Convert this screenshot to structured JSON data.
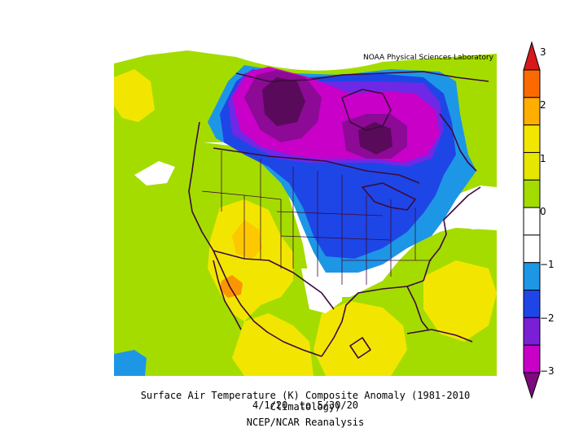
{
  "credit": "NOAA Physical Sciences Laboratory",
  "caption": {
    "line1": "Surface Air Temperature (K) Composite Anomaly (1981-2010 Climatology)",
    "line2": "4/1/20  to 5/30/20",
    "line3": "NCEP/NCAR Reanalysis"
  },
  "colorbar": {
    "ticks": [
      "3",
      "2",
      "1",
      "0",
      "−1",
      "−2",
      "−3"
    ],
    "colors": [
      "#d7191c",
      "#fb6a00",
      "#fdae00",
      "#f2e600",
      "#e6e600",
      "#a4dc00",
      "#ffffff",
      "#ffffff",
      "#1e96e6",
      "#1e46e6",
      "#7a1fd6",
      "#c800c8",
      "#7d0a7d"
    ]
  },
  "palette": {
    "neg3": "#5a0a5a",
    "neg2_5": "#8c0a96",
    "neg2": "#b400c8",
    "neg1_5": "#6e28e6",
    "neg1": "#1e46e6",
    "neg0_5": "#1e96e6",
    "zero": "#ffffff",
    "pos0_5": "#a4dc00",
    "pos1": "#dce600",
    "pos1_5": "#f2e600",
    "pos2": "#fdc800",
    "pos2_5": "#fb9600",
    "coast": "#3c0a3c"
  }
}
